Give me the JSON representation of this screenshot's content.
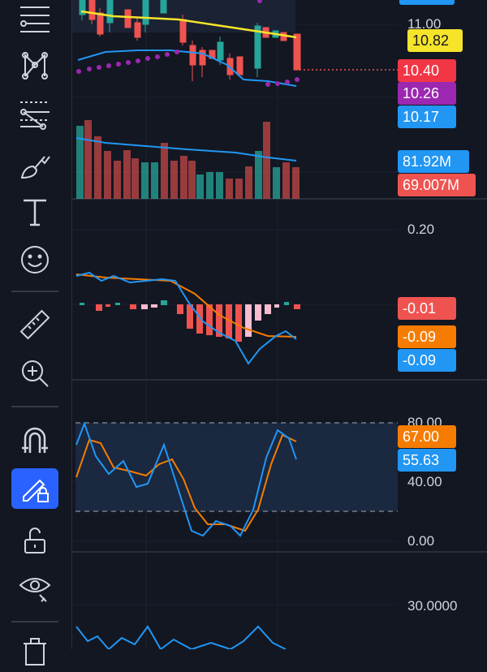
{
  "toolbar": {
    "items": [
      {
        "name": "lines-icon"
      },
      {
        "name": "pattern-icon"
      },
      {
        "name": "fib-icon"
      },
      {
        "name": "brush-icon"
      },
      {
        "name": "text-icon"
      },
      {
        "name": "emoji-icon"
      },
      {
        "name": "ruler-icon"
      },
      {
        "name": "zoom-in-icon"
      },
      {
        "name": "magnet-icon"
      },
      {
        "name": "lock-draw-icon"
      },
      {
        "name": "unlock-icon"
      },
      {
        "name": "eye-icon"
      },
      {
        "name": "trash-icon"
      }
    ]
  },
  "price_axis": {
    "top_value": "11.00",
    "labels": [
      {
        "text": "10.82",
        "bg": "#f5e42a",
        "fg": "#131722"
      },
      {
        "text": "10.40",
        "bg": "#f23645",
        "fg": "#ffffff"
      },
      {
        "text": "10.26",
        "bg": "#9c27b0",
        "fg": "#ffffff"
      },
      {
        "text": "10.17",
        "bg": "#2196f3",
        "fg": "#ffffff"
      }
    ]
  },
  "volume_axis": {
    "labels": [
      {
        "text": "81.92M",
        "bg": "#2196f3",
        "fg": "#ffffff"
      },
      {
        "text": "69.007M",
        "bg": "#ef5350",
        "fg": "#ffffff"
      }
    ]
  },
  "macd_axis": {
    "tick": "0.20",
    "labels": [
      {
        "text": "-0.01",
        "bg": "#ef5350",
        "fg": "#ffffff"
      },
      {
        "text": "-0.09",
        "bg": "#f57c00",
        "fg": "#ffffff"
      },
      {
        "text": "-0.09",
        "bg": "#2196f3",
        "fg": "#ffffff"
      }
    ]
  },
  "stoch_axis": {
    "ticks": [
      "80.00",
      "40.00",
      "0.00"
    ],
    "labels": [
      {
        "text": "67.00",
        "bg": "#f57c00",
        "fg": "#ffffff"
      },
      {
        "text": "55.63",
        "bg": "#2196f3",
        "fg": "#ffffff"
      }
    ]
  },
  "last_axis": {
    "tick": "30.0000"
  },
  "colors": {
    "up": "#26a69a",
    "down": "#ef5350",
    "ma_yellow": "#f5e42a",
    "ma_blue": "#2196f3",
    "dots": "#9c27b0",
    "orange": "#f57c00"
  }
}
